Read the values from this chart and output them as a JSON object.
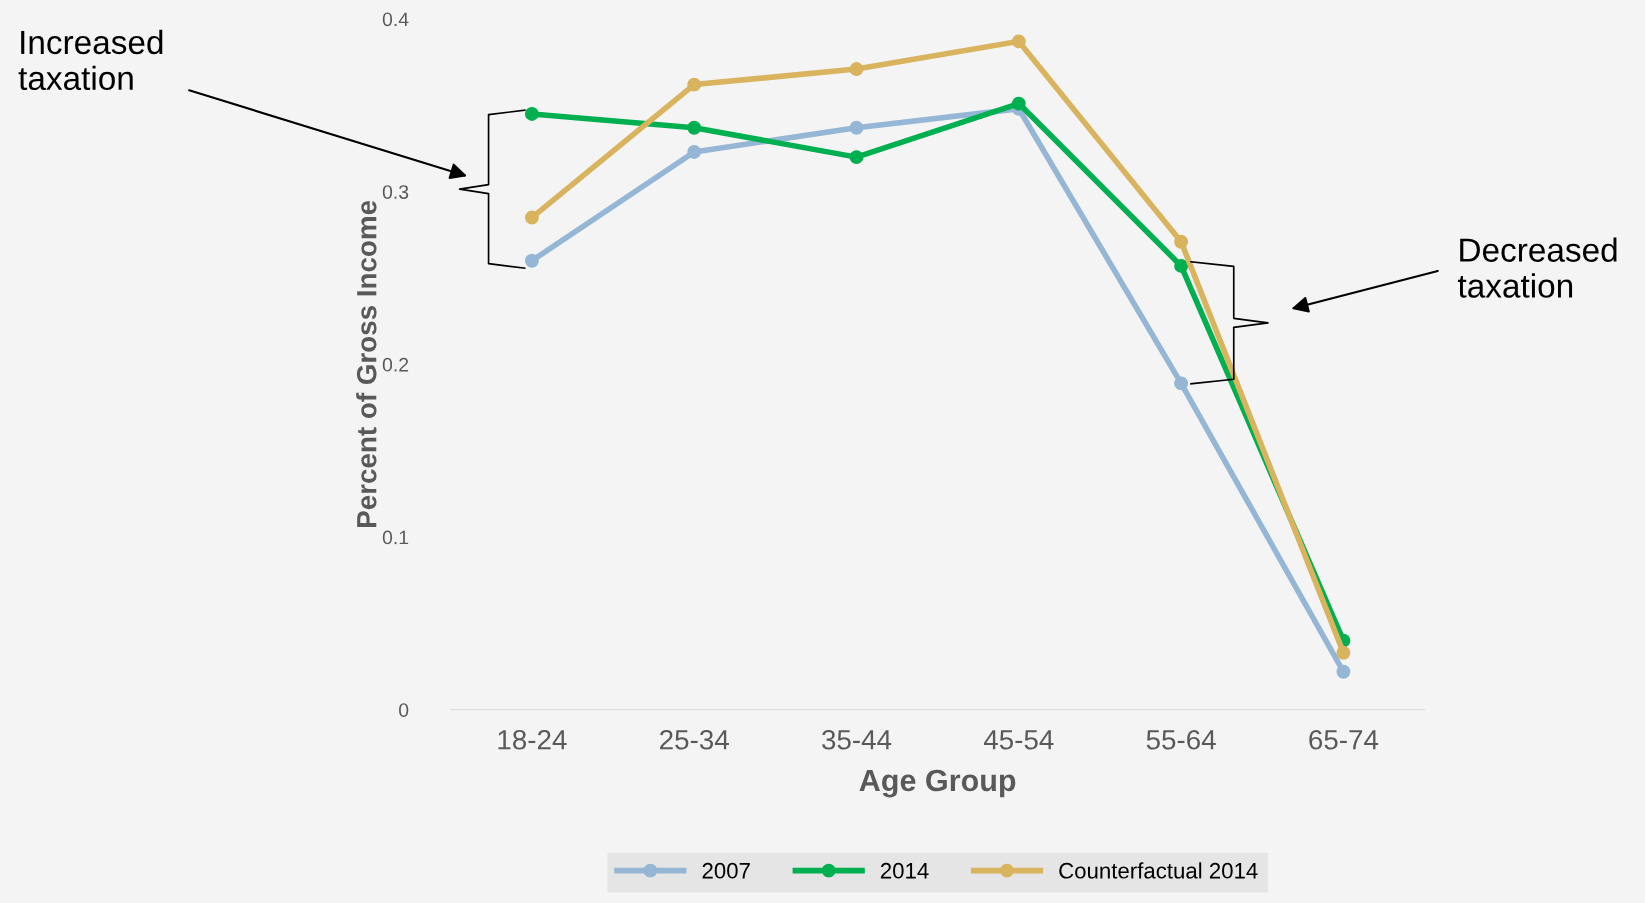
{
  "chart_data": {
    "type": "line",
    "xlabel": "Age Group",
    "ylabel": "Percent of Gross Income",
    "categories": [
      "18-24",
      "25-34",
      "35-44",
      "45-54",
      "55-64",
      "65-74"
    ],
    "series": [
      {
        "name": "2007",
        "color": "#95b6d4",
        "values": [
          0.26,
          0.323,
          0.337,
          0.348,
          0.189,
          0.022
        ]
      },
      {
        "name": "2014",
        "color": "#00b050",
        "values": [
          0.345,
          0.337,
          0.32,
          0.351,
          0.257,
          0.04
        ]
      },
      {
        "name": "Counterfactual 2014",
        "color": "#d9b35e",
        "values": [
          0.285,
          0.362,
          0.371,
          0.387,
          0.271,
          0.033
        ]
      }
    ],
    "ylim": [
      0,
      0.4
    ],
    "yticks": [
      0,
      0.1,
      0.2,
      0.3,
      0.4
    ],
    "marker": "circle",
    "line_style": "solid",
    "grid": false,
    "legend": "bottom",
    "annotations": [
      "Increased taxation",
      "Decreased taxation"
    ]
  }
}
